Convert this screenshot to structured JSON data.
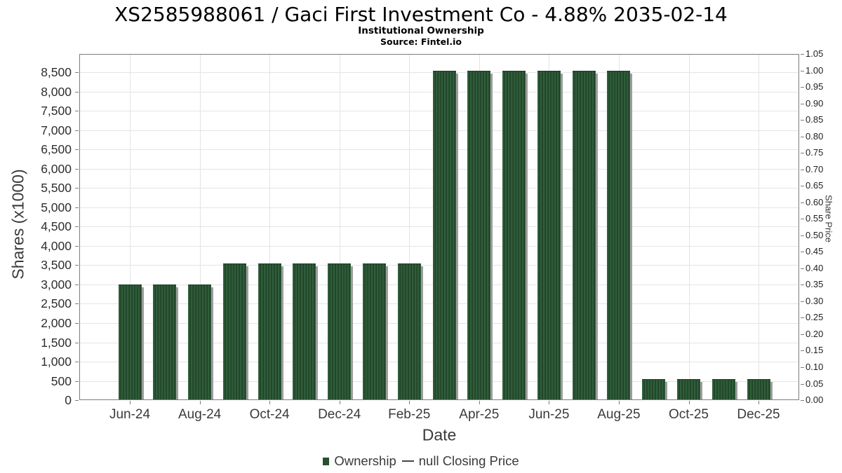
{
  "header": {
    "title": "XS2585988061 / Gaci First Investment Co - 4.88% 2035-02-14",
    "subtitle": "Institutional Ownership",
    "source": "Source: Fintel.io"
  },
  "chart_data": {
    "type": "bar",
    "title": "XS2585988061 / Gaci First Investment Co - 4.88% 2035-02-14",
    "subtitle": "Institutional Ownership",
    "source": "Source: Fintel.io",
    "xlabel": "Date",
    "ylabel_left": "Shares (x1000)",
    "ylabel_right": "Share Price",
    "categories": [
      "Jun-24",
      "Jul-24",
      "Aug-24",
      "Sep-24",
      "Oct-24",
      "Nov-24",
      "Dec-24",
      "Jan-25",
      "Feb-25",
      "Mar-25",
      "Apr-25",
      "May-25",
      "Jun-25",
      "Jul-25",
      "Aug-25",
      "Sep-25",
      "Oct-25",
      "Nov-25",
      "Dec-25"
    ],
    "series": [
      {
        "name": "Ownership",
        "type": "bar",
        "unit": "shares x1000",
        "values": [
          3000,
          3000,
          3000,
          3550,
          3550,
          3550,
          3550,
          3550,
          3550,
          8550,
          8550,
          8550,
          8550,
          8550,
          8550,
          550,
          550,
          550,
          550
        ]
      },
      {
        "name": "null Closing Price",
        "type": "line",
        "values": []
      }
    ],
    "x_tick_labels": [
      "Jun-24",
      "Aug-24",
      "Oct-24",
      "Dec-24",
      "Feb-25",
      "Apr-25",
      "Jun-25",
      "Aug-25",
      "Oct-25",
      "Dec-25"
    ],
    "y_left_ticks": [
      0,
      500,
      1000,
      1500,
      2000,
      2500,
      3000,
      3500,
      4000,
      4500,
      5000,
      5500,
      6000,
      6500,
      7000,
      7500,
      8000,
      8500
    ],
    "y_left_tick_labels": [
      "0",
      "500",
      "1,000",
      "1,500",
      "2,000",
      "2,500",
      "3,000",
      "3,500",
      "4,000",
      "4,500",
      "5,000",
      "5,500",
      "6,000",
      "6,500",
      "7,000",
      "7,500",
      "8,000",
      "8,500"
    ],
    "y_right_ticks": [
      0.0,
      0.05,
      0.1,
      0.15,
      0.2,
      0.25,
      0.3,
      0.35,
      0.4,
      0.45,
      0.5,
      0.55,
      0.6,
      0.65,
      0.7,
      0.75,
      0.8,
      0.85,
      0.9,
      0.95,
      1.0,
      1.05
    ],
    "y_right_tick_labels": [
      "0.00",
      "0.05",
      "0.10",
      "0.15",
      "0.20",
      "0.25",
      "0.30",
      "0.35",
      "0.40",
      "0.45",
      "0.50",
      "0.55",
      "0.60",
      "0.65",
      "0.70",
      "0.75",
      "0.80",
      "0.85",
      "0.90",
      "0.95",
      "1.00",
      "1.05"
    ],
    "ylim_left": [
      0,
      8977.5
    ],
    "ylim_right": [
      0,
      1.05
    ],
    "grid": true,
    "legend_position": "bottom"
  },
  "legend": {
    "items": [
      {
        "label": "Ownership",
        "marker": "square"
      },
      {
        "label": "null Closing Price",
        "marker": "line"
      }
    ]
  },
  "colors": {
    "bar": "#2a5433",
    "bar_stripe_light": "#356742",
    "bar_stripe_dark": "#1c3b24",
    "bar_shadow": "#9c9c9c",
    "grid": "#e4e4e4",
    "frame": "#7c7c7c",
    "tick_text": "#2e2e2e",
    "axis_text": "#3a3a3a",
    "title_text": "#000000"
  }
}
